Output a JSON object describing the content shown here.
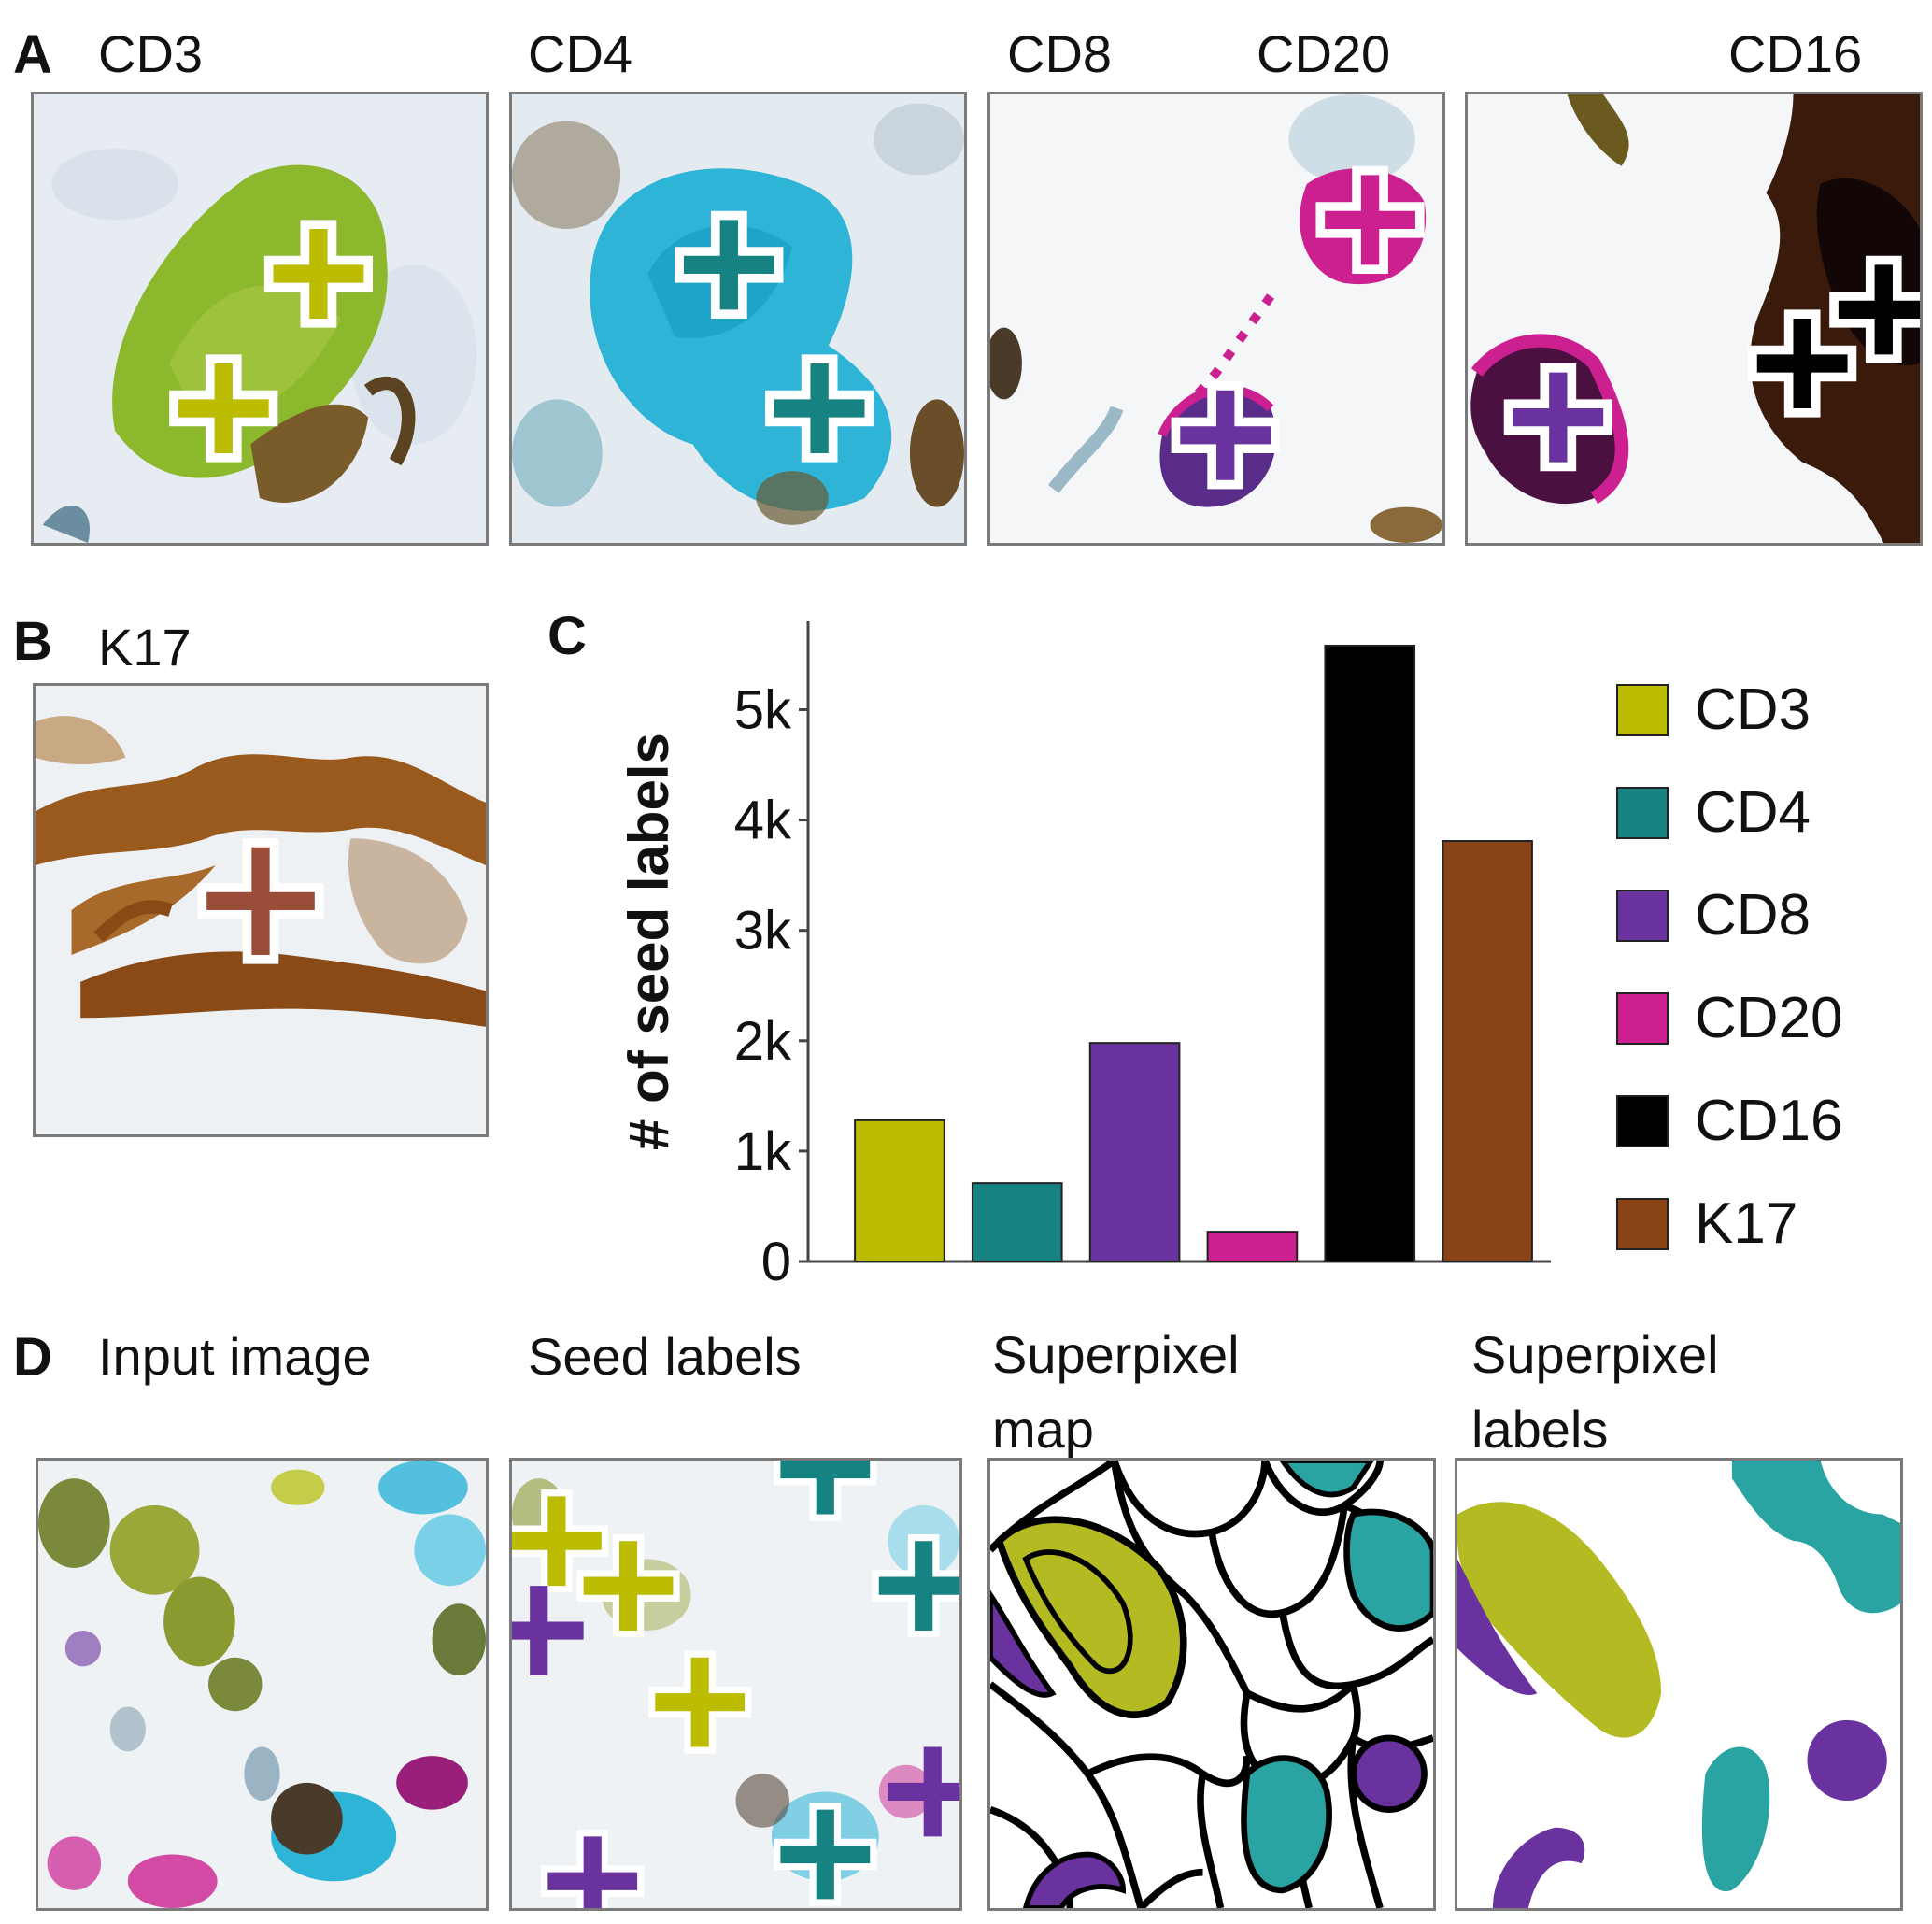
{
  "panels": {
    "A": {
      "letter": "A",
      "labels": [
        "CD3",
        "CD4",
        "CD8",
        "CD20",
        "CD16"
      ]
    },
    "B": {
      "letter": "B",
      "label": "K17"
    },
    "C": {
      "letter": "C"
    },
    "D": {
      "letter": "D",
      "titles": {
        "input": "Input image",
        "seed": "Seed labels",
        "map_line1": "Superpixel",
        "map_line2": "map",
        "labels_line1": "Superpixel",
        "labels_line2": "labels"
      }
    }
  },
  "colors": {
    "CD3": "#bcbc00",
    "CD4": "#178282",
    "CD8": "#6a329f",
    "CD20": "#cc1f90",
    "CD16": "#000000",
    "K17": "#8a4316",
    "teal_region": "#2aa3a3",
    "olive_region": "#b4ba22"
  },
  "chart_data": {
    "type": "bar",
    "title": "",
    "xlabel": "",
    "ylabel": "# of seed labels",
    "categories": [
      "CD3",
      "CD4",
      "CD8",
      "CD20",
      "CD16",
      "K17"
    ],
    "values": [
      1280,
      710,
      1980,
      270,
      5580,
      3810
    ],
    "ylim": [
      0,
      5800
    ],
    "yticks": [
      0,
      1000,
      2000,
      3000,
      4000,
      5000
    ],
    "ytick_labels": [
      "0",
      "1k",
      "2k",
      "3k",
      "4k",
      "5k"
    ],
    "legend": {
      "position": "right",
      "entries": [
        "CD3",
        "CD4",
        "CD8",
        "CD20",
        "CD16",
        "K17"
      ]
    }
  }
}
